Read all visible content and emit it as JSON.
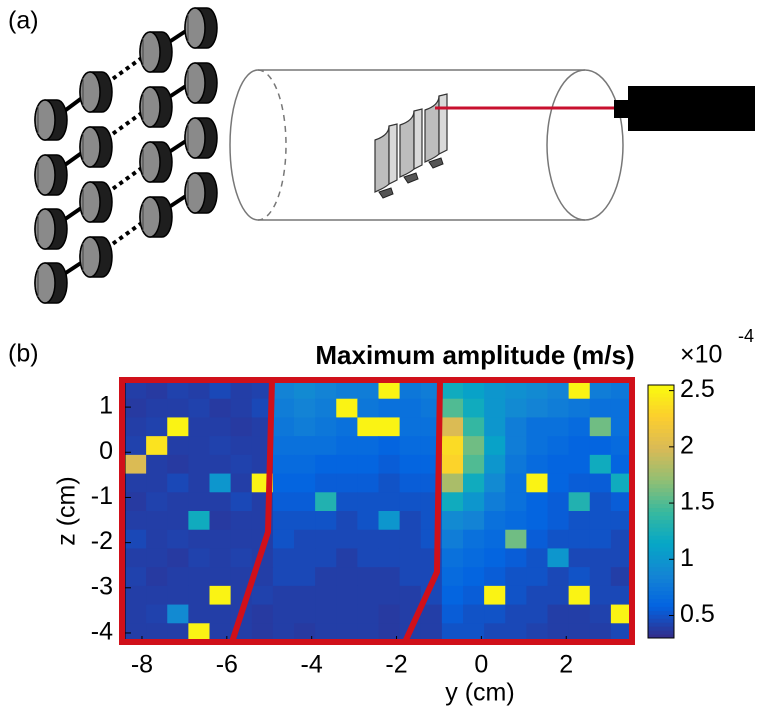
{
  "panels": {
    "a": {
      "label": "(a)"
    },
    "b": {
      "label": "(b)"
    }
  },
  "chart_data": {
    "type": "heatmap",
    "title": "Maximum amplitude (m/s)",
    "xlabel": "y (cm)",
    "ylabel": "z (cm)",
    "xlim": [
      -8.4,
      3.55
    ],
    "ylim": [
      -4.2,
      1.6
    ],
    "xticks": [
      -8,
      -6,
      -4,
      -2,
      0,
      2
    ],
    "yticks": [
      1,
      0,
      -1,
      -2,
      -3,
      -4
    ],
    "colormap": "parula",
    "clim": [
      0.3,
      2.55
    ],
    "cticks": [
      2.5,
      2,
      1.5,
      1,
      0.5
    ],
    "scale_label": "×10",
    "scale_exponent": "-4",
    "values": [
      [
        0.4,
        0.38,
        0.42,
        0.4,
        0.45,
        0.4,
        0.42,
        0.85,
        0.9,
        0.85,
        0.8,
        0.8,
        2.5,
        0.75,
        0.8,
        1.2,
        1.1,
        1.0,
        0.95,
        0.9,
        0.85,
        2.5,
        0.8,
        0.75
      ],
      [
        0.38,
        0.4,
        0.4,
        0.42,
        0.38,
        0.4,
        0.45,
        0.8,
        0.85,
        0.8,
        2.5,
        0.75,
        0.7,
        0.7,
        0.75,
        1.5,
        1.2,
        1.0,
        0.9,
        0.85,
        0.8,
        0.75,
        0.7,
        0.7
      ],
      [
        0.4,
        0.42,
        2.5,
        0.4,
        0.4,
        0.38,
        0.4,
        0.75,
        0.8,
        0.75,
        0.7,
        2.5,
        2.5,
        0.7,
        0.7,
        2.0,
        1.4,
        1.0,
        0.8,
        0.7,
        0.7,
        0.65,
        1.6,
        0.7
      ],
      [
        0.42,
        2.4,
        0.4,
        0.4,
        0.42,
        0.4,
        0.4,
        0.7,
        0.7,
        0.7,
        0.65,
        0.65,
        0.6,
        0.65,
        0.65,
        2.35,
        1.6,
        1.1,
        0.8,
        0.7,
        0.65,
        0.6,
        0.6,
        0.65
      ],
      [
        2.0,
        0.4,
        0.38,
        0.4,
        0.4,
        0.42,
        0.4,
        0.65,
        0.65,
        0.6,
        0.6,
        0.6,
        0.55,
        0.6,
        0.6,
        2.3,
        1.5,
        1.0,
        0.75,
        0.65,
        0.6,
        0.6,
        1.2,
        0.6
      ],
      [
        0.4,
        0.4,
        0.45,
        0.4,
        1.0,
        0.4,
        2.5,
        0.6,
        0.6,
        0.55,
        0.55,
        0.55,
        0.5,
        0.55,
        0.55,
        1.8,
        1.2,
        0.9,
        0.7,
        2.5,
        0.6,
        0.55,
        0.55,
        1.2
      ],
      [
        0.38,
        0.42,
        0.4,
        0.4,
        0.4,
        0.45,
        0.4,
        0.55,
        0.55,
        1.3,
        0.5,
        0.5,
        0.5,
        0.5,
        0.5,
        1.2,
        1.0,
        0.8,
        0.7,
        0.6,
        0.55,
        1.3,
        0.5,
        0.55
      ],
      [
        0.4,
        0.4,
        0.4,
        1.2,
        0.38,
        0.4,
        0.4,
        0.5,
        0.5,
        0.5,
        0.45,
        0.5,
        1.0,
        0.45,
        0.5,
        0.9,
        0.85,
        0.7,
        0.65,
        0.6,
        0.55,
        0.5,
        0.5,
        0.5
      ],
      [
        0.45,
        0.4,
        0.42,
        0.4,
        0.4,
        0.4,
        0.4,
        0.5,
        0.45,
        0.45,
        0.45,
        0.45,
        0.45,
        0.45,
        0.5,
        0.8,
        0.7,
        0.65,
        1.6,
        0.55,
        0.5,
        0.5,
        0.5,
        0.45
      ],
      [
        0.4,
        0.4,
        0.38,
        0.42,
        0.4,
        0.42,
        0.4,
        0.45,
        0.45,
        0.45,
        0.4,
        0.45,
        0.45,
        0.45,
        0.45,
        0.7,
        0.65,
        0.6,
        0.55,
        0.5,
        1.0,
        0.45,
        0.45,
        0.45
      ],
      [
        0.42,
        0.38,
        0.4,
        0.4,
        0.4,
        0.4,
        0.4,
        0.45,
        0.45,
        0.4,
        0.4,
        0.4,
        0.4,
        0.45,
        0.45,
        0.65,
        0.6,
        0.55,
        0.5,
        0.5,
        0.45,
        0.5,
        0.45,
        0.4
      ],
      [
        0.4,
        0.4,
        0.4,
        0.4,
        2.5,
        0.4,
        0.42,
        0.4,
        0.4,
        0.4,
        0.4,
        0.4,
        0.4,
        0.4,
        0.45,
        0.6,
        0.55,
        2.5,
        0.5,
        0.45,
        0.45,
        2.5,
        0.45,
        0.45
      ],
      [
        0.4,
        0.42,
        0.9,
        0.4,
        0.4,
        0.4,
        0.38,
        0.4,
        0.4,
        0.4,
        0.4,
        0.4,
        0.38,
        0.4,
        0.4,
        0.55,
        0.5,
        0.5,
        0.45,
        0.45,
        0.4,
        0.4,
        0.42,
        2.5
      ],
      [
        0.4,
        0.4,
        0.4,
        2.5,
        0.4,
        0.4,
        0.38,
        0.4,
        0.38,
        0.4,
        0.4,
        0.4,
        0.38,
        0.4,
        0.4,
        0.5,
        0.5,
        0.45,
        0.45,
        0.42,
        0.4,
        0.4,
        0.4,
        0.45
      ]
    ]
  }
}
